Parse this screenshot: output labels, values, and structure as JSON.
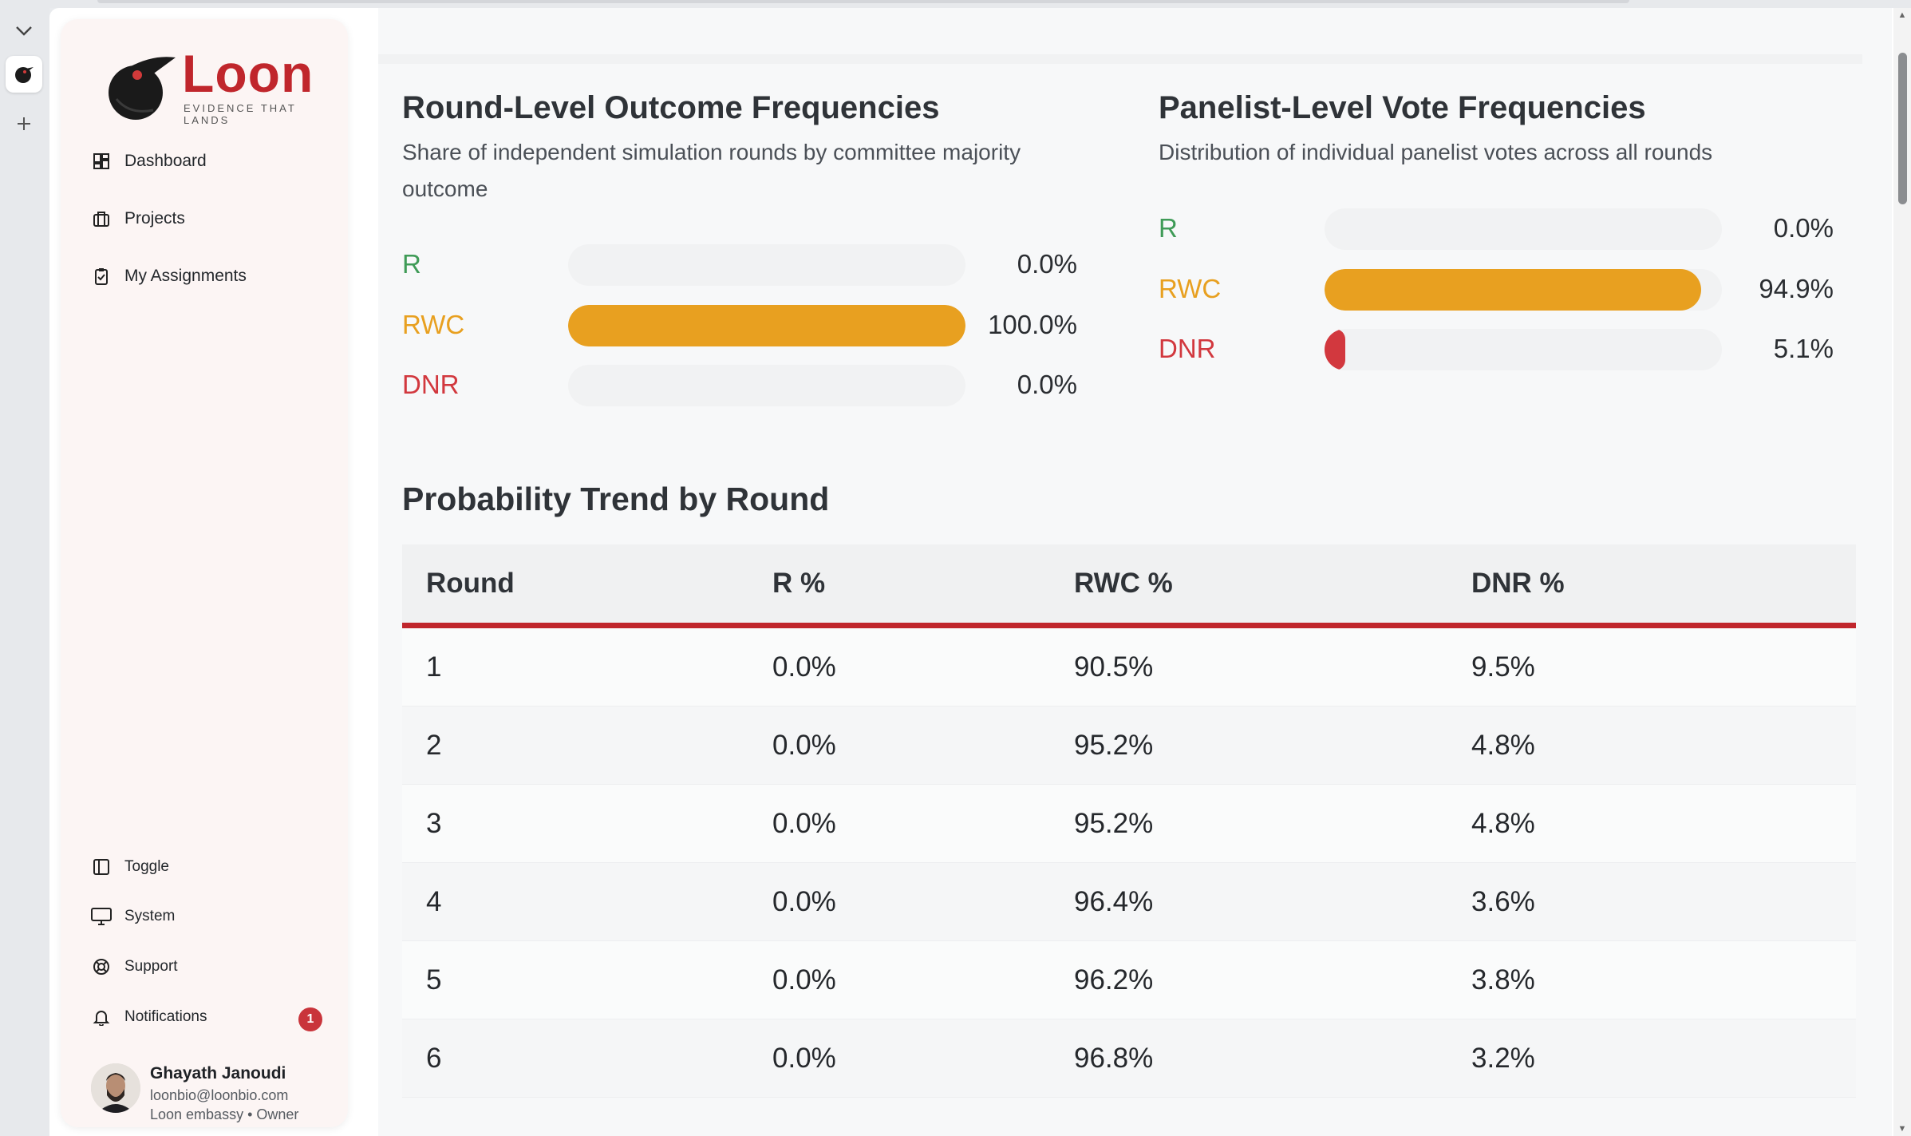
{
  "brand": {
    "name": "Loon",
    "tagline": "EVIDENCE THAT LANDS"
  },
  "sidebar": {
    "nav": [
      {
        "label": "Dashboard",
        "icon": "dashboard-icon"
      },
      {
        "label": "Projects",
        "icon": "briefcase-icon"
      },
      {
        "label": "My Assignments",
        "icon": "clipboard-check-icon"
      }
    ],
    "bottom": [
      {
        "label": "Toggle",
        "icon": "sidebar-toggle-icon"
      },
      {
        "label": "System",
        "icon": "monitor-icon"
      },
      {
        "label": "Support",
        "icon": "lifebuoy-icon"
      },
      {
        "label": "Notifications",
        "icon": "bell-icon"
      }
    ],
    "notifications_count": "1",
    "user": {
      "name": "Ghayath Janoudi",
      "email": "loonbio@loonbio.com",
      "org": "Loon embassy • Owner"
    }
  },
  "round_panel": {
    "title": "Round-Level Outcome Frequencies",
    "subtitle_line1": "Share of independent simulation rounds by committee majority",
    "subtitle_line2": "outcome",
    "bars": [
      {
        "label": "R",
        "value": "0.0%",
        "fraction": 0.0,
        "color": "#3f9b57"
      },
      {
        "label": "RWC",
        "value": "100.0%",
        "fraction": 1.0,
        "color": "#e8a020"
      },
      {
        "label": "DNR",
        "value": "0.0%",
        "fraction": 0.0,
        "color": "#d2383e"
      }
    ]
  },
  "panelist_panel": {
    "title": "Panelist-Level Vote Frequencies",
    "subtitle": "Distribution of individual panelist votes across all rounds",
    "bars": [
      {
        "label": "R",
        "value": "0.0%",
        "fraction": 0.0,
        "color": "#3f9b57"
      },
      {
        "label": "RWC",
        "value": "94.9%",
        "fraction": 0.949,
        "color": "#e8a020"
      },
      {
        "label": "DNR",
        "value": "5.1%",
        "fraction": 0.051,
        "color": "#d2383e"
      }
    ]
  },
  "trend": {
    "title": "Probability Trend by Round",
    "headers": [
      "Round",
      "R %",
      "RWC %",
      "DNR %"
    ],
    "rows": [
      [
        "1",
        "0.0%",
        "90.5%",
        "9.5%"
      ],
      [
        "2",
        "0.0%",
        "95.2%",
        "4.8%"
      ],
      [
        "3",
        "0.0%",
        "95.2%",
        "4.8%"
      ],
      [
        "4",
        "0.0%",
        "96.4%",
        "3.6%"
      ],
      [
        "5",
        "0.0%",
        "96.2%",
        "3.8%"
      ],
      [
        "6",
        "0.0%",
        "96.8%",
        "3.2%"
      ]
    ]
  },
  "colors": {
    "brand_red": "#c0262c",
    "accent_orange": "#e8a020",
    "green": "#3f9b57",
    "red": "#d2383e"
  }
}
